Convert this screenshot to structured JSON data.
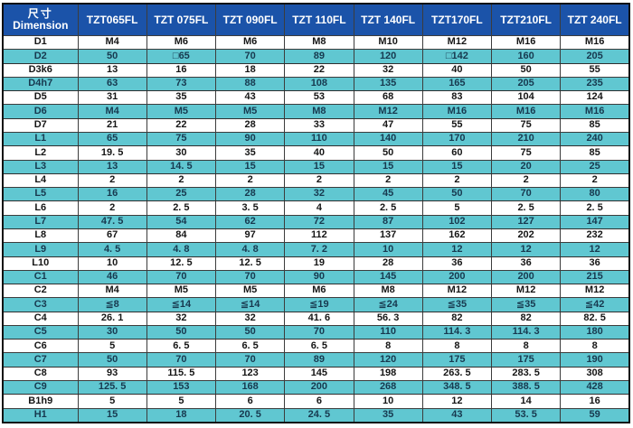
{
  "colors": {
    "header_bg": "#1b53a9",
    "header_text": "#ffffff",
    "alt_row_bg": "#60c7d1",
    "row_bg": "#ffffff",
    "cell_text": "#151515",
    "alt_cell_text": "#17394f",
    "border": "#3c3c3c"
  },
  "chart_data": {
    "type": "table",
    "corner_header": {
      "zh": "尺寸",
      "en": "Dimension"
    },
    "columns": [
      "TZT065FL",
      "TZT 075FL",
      "TZT 090FL",
      "TZT 110FL",
      "TZT 140FL",
      "TZT170FL",
      "TZT210FL",
      "TZT 240FL"
    ],
    "rows": [
      {
        "label": "D1",
        "values": [
          "M4",
          "M6",
          "M6",
          "M8",
          "M10",
          "M12",
          "M16",
          "M16"
        ]
      },
      {
        "label": "D2",
        "values": [
          "50",
          "□65",
          "70",
          "89",
          "120",
          "□142",
          "160",
          "205"
        ]
      },
      {
        "label": "D3k6",
        "values": [
          "13",
          "16",
          "18",
          "22",
          "32",
          "40",
          "50",
          "55"
        ]
      },
      {
        "label": "D4h7",
        "values": [
          "63",
          "73",
          "88",
          "108",
          "135",
          "165",
          "205",
          "235"
        ]
      },
      {
        "label": "D5",
        "values": [
          "31",
          "35",
          "43",
          "53",
          "68",
          "83",
          "104",
          "124"
        ]
      },
      {
        "label": "D6",
        "values": [
          "M4",
          "M5",
          "M5",
          "M8",
          "M12",
          "M16",
          "M16",
          "M16"
        ]
      },
      {
        "label": "D7",
        "values": [
          "21",
          "22",
          "28",
          "33",
          "47",
          "55",
          "75",
          "85"
        ]
      },
      {
        "label": "L1",
        "values": [
          "65",
          "75",
          "90",
          "110",
          "140",
          "170",
          "210",
          "240"
        ]
      },
      {
        "label": "L2",
        "values": [
          "19. 5",
          "30",
          "35",
          "40",
          "50",
          "60",
          "75",
          "85"
        ]
      },
      {
        "label": "L3",
        "values": [
          "13",
          "14. 5",
          "15",
          "15",
          "15",
          "15",
          "20",
          "25"
        ]
      },
      {
        "label": "L4",
        "values": [
          "2",
          "2",
          "2",
          "2",
          "2",
          "2",
          "2",
          "2"
        ]
      },
      {
        "label": "L5",
        "values": [
          "16",
          "25",
          "28",
          "32",
          "45",
          "50",
          "70",
          "80"
        ]
      },
      {
        "label": "L6",
        "values": [
          "2",
          "2. 5",
          "3. 5",
          "4",
          "2. 5",
          "5",
          "2. 5",
          "2. 5"
        ]
      },
      {
        "label": "L7",
        "values": [
          "47. 5",
          "54",
          "62",
          "72",
          "87",
          "102",
          "127",
          "147"
        ]
      },
      {
        "label": "L8",
        "values": [
          "67",
          "84",
          "97",
          "112",
          "137",
          "162",
          "202",
          "232"
        ]
      },
      {
        "label": "L9",
        "values": [
          "4. 5",
          "4. 8",
          "4. 8",
          "7. 2",
          "10",
          "12",
          "12",
          "12"
        ]
      },
      {
        "label": "L10",
        "values": [
          "10",
          "12. 5",
          "12. 5",
          "19",
          "28",
          "36",
          "36",
          "36"
        ]
      },
      {
        "label": "C1",
        "values": [
          "46",
          "70",
          "70",
          "90",
          "145",
          "200",
          "200",
          "215"
        ]
      },
      {
        "label": "C2",
        "values": [
          "M4",
          "M5",
          "M5",
          "M6",
          "M8",
          "M12",
          "M12",
          "M12"
        ]
      },
      {
        "label": "C3",
        "values": [
          "≦8",
          "≦14",
          "≦14",
          "≦19",
          "≦24",
          "≦35",
          "≦35",
          "≦42"
        ]
      },
      {
        "label": "C4",
        "values": [
          "26. 1",
          "32",
          "32",
          "41. 6",
          "56. 3",
          "82",
          "82",
          "82. 5"
        ]
      },
      {
        "label": "C5",
        "values": [
          "30",
          "50",
          "50",
          "70",
          "110",
          "114. 3",
          "114. 3",
          "180"
        ]
      },
      {
        "label": "C6",
        "values": [
          "5",
          "6. 5",
          "6. 5",
          "6. 5",
          "8",
          "8",
          "8",
          "8"
        ]
      },
      {
        "label": "C7",
        "values": [
          "50",
          "70",
          "70",
          "89",
          "120",
          "175",
          "175",
          "190"
        ]
      },
      {
        "label": "C8",
        "values": [
          "93",
          "115. 5",
          "123",
          "145",
          "198",
          "263. 5",
          "283. 5",
          "308"
        ]
      },
      {
        "label": "C9",
        "values": [
          "125. 5",
          "153",
          "168",
          "200",
          "268",
          "348. 5",
          "388. 5",
          "428"
        ]
      },
      {
        "label": "B1h9",
        "values": [
          "5",
          "5",
          "6",
          "6",
          "10",
          "12",
          "14",
          "16"
        ]
      },
      {
        "label": "H1",
        "values": [
          "15",
          "18",
          "20. 5",
          "24. 5",
          "35",
          "43",
          "53. 5",
          "59"
        ]
      }
    ]
  }
}
